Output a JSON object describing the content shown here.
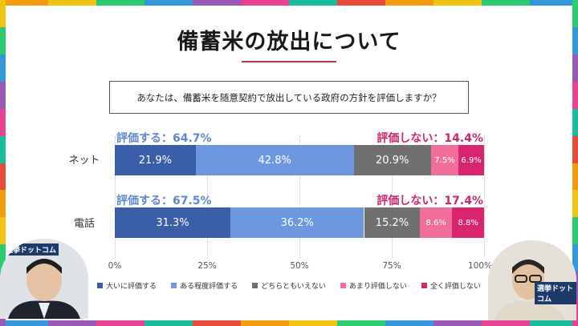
{
  "page": {
    "title": "備蓄米の放出について",
    "question": "あなたは、備蓄米を随意契約で放出している政府の方針を評価しますか？"
  },
  "colors": {
    "very_high": "#3a5ea8",
    "somewhat": "#6d98e0",
    "neutral": "#707070",
    "not_much": "#f06e9a",
    "not_at_all": "#d9246e",
    "positive_text": "#5f88cc",
    "negative_text": "#d0256b",
    "frame": [
      "#e74c3c",
      "#f39c12",
      "#f1c40f",
      "#2ecc71",
      "#3498db",
      "#9b59b6",
      "#e84393",
      "#1abc9c"
    ]
  },
  "chart_data": {
    "type": "bar",
    "orientation": "horizontal",
    "stacked": true,
    "categories": [
      "ネット",
      "電話"
    ],
    "series": [
      {
        "name": "大いに評価する",
        "values": [
          21.9,
          31.3
        ],
        "labels": [
          "21.9%",
          "31.3%"
        ]
      },
      {
        "name": "ある程度評価する",
        "values": [
          42.8,
          36.2
        ],
        "labels": [
          "42.8%",
          "36.2%"
        ]
      },
      {
        "name": "どちらともいえない",
        "values": [
          20.9,
          15.2
        ],
        "labels": [
          "20.9%",
          "15.2%"
        ]
      },
      {
        "name": "あまり評価しない",
        "values": [
          7.5,
          8.6
        ],
        "labels": [
          "7.5%",
          "8.6%"
        ]
      },
      {
        "name": "全く評価しない",
        "values": [
          6.9,
          8.8
        ],
        "labels": [
          "6.9%",
          "8.8%"
        ]
      }
    ],
    "summaries": [
      {
        "positive": "評価する：64.7%",
        "negative": "評価しない：14.4%"
      },
      {
        "positive": "評価する：67.5%",
        "negative": "評価しない：17.4%"
      }
    ],
    "x_ticks": [
      "0%",
      "25%",
      "50%",
      "75%",
      "100%"
    ],
    "xlim": [
      0,
      100
    ],
    "legend_position": "bottom"
  },
  "overlay": {
    "left_logo": "選挙ドットコム",
    "right_logo": "選挙ドットコム"
  }
}
